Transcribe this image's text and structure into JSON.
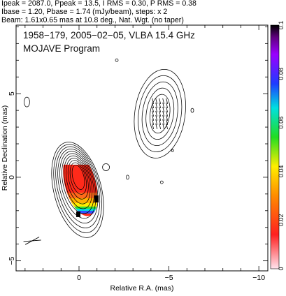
{
  "header": {
    "line1": "Ipeak = 2087.0, Ppeak = 13.5, I RMS = 0.30, P RMS = 0.38",
    "line2": "Ibase = 1.20, Pbase = 1.74 (mJy/beam), steps: x 2",
    "line3": "Beam: 1.61x0.65 mas at 10.8 deg., Nat. Wgt. (no taper)"
  },
  "chart_data": {
    "type": "contour",
    "title": "1958−179, 2005−02−05, VLBA 15.4 GHz",
    "subtitle": "MOJAVE Program",
    "xlabel": "Relative R.A. (mas)",
    "ylabel": "Relative Declination (mas)",
    "xlim": [
      3.5,
      -10.5
    ],
    "ylim": [
      -5.6,
      9.1
    ],
    "x_ticks": [
      "0",
      "−5",
      "−10"
    ],
    "y_ticks": [
      "−5",
      "0",
      "5"
    ],
    "x_tick_values": [
      0,
      -5,
      -10
    ],
    "y_tick_values": [
      -5,
      0,
      5
    ],
    "colorbar": {
      "range": [
        0,
        0.1
      ],
      "tick_labels": [
        "0",
        "0.02",
        "0.04",
        "0.06",
        "0.08",
        "0.1"
      ],
      "tick_values": [
        0,
        0.02,
        0.04,
        0.06,
        0.08,
        0.1
      ]
    },
    "core": {
      "x": 0.0,
      "y": 0.0,
      "levels": 11
    },
    "jet_component": {
      "x": -4.5,
      "y": 3.8,
      "levels": 5
    },
    "beam": {
      "major_mas": 1.61,
      "minor_mas": 0.65,
      "pa_deg": 10.8,
      "x": 2.6,
      "y": -3.8
    }
  }
}
